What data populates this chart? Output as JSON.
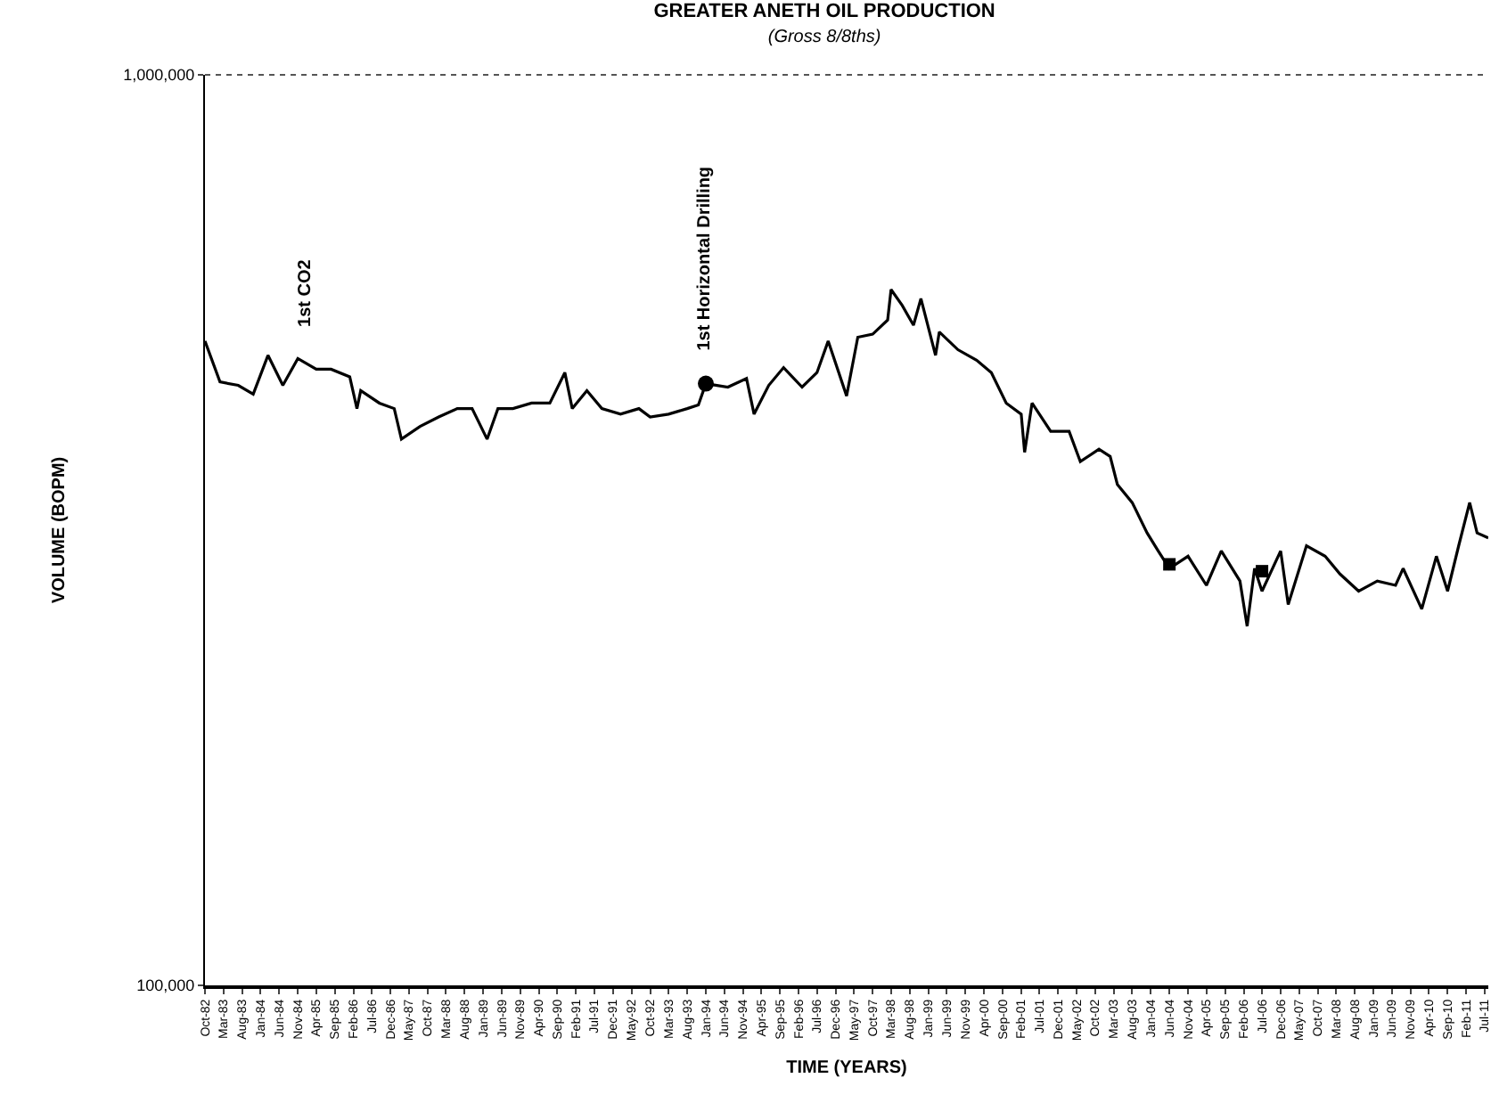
{
  "chart_data": {
    "type": "line",
    "title": "GREATER ANETH OIL PRODUCTION",
    "subtitle": "(Gross 8/8ths)",
    "xlabel": "TIME (YEARS)",
    "ylabel": "VOLUME (BOPM)",
    "log": "y",
    "marker": "none",
    "line_style": "solid",
    "xlim": [
      "1982-10",
      "2011-08"
    ],
    "ylim": [
      100000,
      1000000
    ],
    "yticks": [
      {
        "value": 100000,
        "label": "100,000"
      },
      {
        "value": 1000000,
        "label": "1,000,000"
      }
    ],
    "xticks": [
      {
        "value": "1982-10",
        "label": "Oct-82"
      },
      {
        "value": "1983-03",
        "label": "Mar-83"
      },
      {
        "value": "1983-08",
        "label": "Aug-83"
      },
      {
        "value": "1984-01",
        "label": "Jan-84"
      },
      {
        "value": "1984-06",
        "label": "Jun-84"
      },
      {
        "value": "1984-11",
        "label": "Nov-84"
      },
      {
        "value": "1985-04",
        "label": "Apr-85"
      },
      {
        "value": "1985-09",
        "label": "Sep-85"
      },
      {
        "value": "1986-02",
        "label": "Feb-86"
      },
      {
        "value": "1986-07",
        "label": "Jul-86"
      },
      {
        "value": "1986-12",
        "label": "Dec-86"
      },
      {
        "value": "1987-05",
        "label": "May-87"
      },
      {
        "value": "1987-10",
        "label": "Oct-87"
      },
      {
        "value": "1988-03",
        "label": "Mar-88"
      },
      {
        "value": "1988-08",
        "label": "Aug-88"
      },
      {
        "value": "1989-01",
        "label": "Jan-89"
      },
      {
        "value": "1989-06",
        "label": "Jun-89"
      },
      {
        "value": "1989-11",
        "label": "Nov-89"
      },
      {
        "value": "1990-04",
        "label": "Apr-90"
      },
      {
        "value": "1990-09",
        "label": "Sep-90"
      },
      {
        "value": "1991-02",
        "label": "Feb-91"
      },
      {
        "value": "1991-07",
        "label": "Jul-91"
      },
      {
        "value": "1991-12",
        "label": "Dec-91"
      },
      {
        "value": "1992-05",
        "label": "May-92"
      },
      {
        "value": "1992-10",
        "label": "Oct-92"
      },
      {
        "value": "1993-03",
        "label": "Mar-93"
      },
      {
        "value": "1993-08",
        "label": "Aug-93"
      },
      {
        "value": "1994-01",
        "label": "Jan-94"
      },
      {
        "value": "1994-06",
        "label": "Jun-94"
      },
      {
        "value": "1994-11",
        "label": "Nov-94"
      },
      {
        "value": "1995-04",
        "label": "Apr-95"
      },
      {
        "value": "1995-09",
        "label": "Sep-95"
      },
      {
        "value": "1996-02",
        "label": "Feb-96"
      },
      {
        "value": "1996-07",
        "label": "Jul-96"
      },
      {
        "value": "1996-12",
        "label": "Dec-96"
      },
      {
        "value": "1997-05",
        "label": "May-97"
      },
      {
        "value": "1997-10",
        "label": "Oct-97"
      },
      {
        "value": "1998-03",
        "label": "Mar-98"
      },
      {
        "value": "1998-08",
        "label": "Aug-98"
      },
      {
        "value": "1999-01",
        "label": "Jan-99"
      },
      {
        "value": "1999-06",
        "label": "Jun-99"
      },
      {
        "value": "1999-11",
        "label": "Nov-99"
      },
      {
        "value": "2000-04",
        "label": "Apr-00"
      },
      {
        "value": "2000-09",
        "label": "Sep-00"
      },
      {
        "value": "2001-02",
        "label": "Feb-01"
      },
      {
        "value": "2001-07",
        "label": "Jul-01"
      },
      {
        "value": "2001-12",
        "label": "Dec-01"
      },
      {
        "value": "2002-05",
        "label": "May-02"
      },
      {
        "value": "2002-10",
        "label": "Oct-02"
      },
      {
        "value": "2003-03",
        "label": "Mar-03"
      },
      {
        "value": "2003-08",
        "label": "Aug-03"
      },
      {
        "value": "2004-01",
        "label": "Jan-04"
      },
      {
        "value": "2004-06",
        "label": "Jun-04"
      },
      {
        "value": "2004-11",
        "label": "Nov-04"
      },
      {
        "value": "2005-04",
        "label": "Apr-05"
      },
      {
        "value": "2005-09",
        "label": "Sep-05"
      },
      {
        "value": "2006-02",
        "label": "Feb-06"
      },
      {
        "value": "2006-07",
        "label": "Jul-06"
      },
      {
        "value": "2006-12",
        "label": "Dec-06"
      },
      {
        "value": "2007-05",
        "label": "May-07"
      },
      {
        "value": "2007-10",
        "label": "Oct-07"
      },
      {
        "value": "2008-03",
        "label": "Mar-08"
      },
      {
        "value": "2008-08",
        "label": "Aug-08"
      },
      {
        "value": "2009-01",
        "label": "Jan-09"
      },
      {
        "value": "2009-06",
        "label": "Jun-09"
      },
      {
        "value": "2009-11",
        "label": "Nov-09"
      },
      {
        "value": "2010-04",
        "label": "Apr-10"
      },
      {
        "value": "2010-09",
        "label": "Sep-10"
      },
      {
        "value": "2011-02",
        "label": "Feb-11"
      },
      {
        "value": "2011-07",
        "label": "Jul-11"
      }
    ],
    "series": [
      {
        "color": "#000000",
        "x": [
          "1982-10",
          "1983-02",
          "1983-07",
          "1983-11",
          "1984-03",
          "1984-07",
          "1984-11",
          "1985-04",
          "1985-08",
          "1986-01",
          "1986-03",
          "1986-04",
          "1986-09",
          "1987-01",
          "1987-03",
          "1987-08",
          "1988-01",
          "1988-06",
          "1988-10",
          "1989-02",
          "1989-05",
          "1989-09",
          "1990-02",
          "1990-07",
          "1990-11",
          "1991-01",
          "1991-05",
          "1991-09",
          "1992-02",
          "1992-07",
          "1992-10",
          "1993-03",
          "1993-08",
          "1993-11",
          "1994-01",
          "1994-07",
          "1994-12",
          "1995-02",
          "1995-06",
          "1995-10",
          "1996-03",
          "1996-07",
          "1996-10",
          "1997-03",
          "1997-06",
          "1997-10",
          "1998-02",
          "1998-03",
          "1998-06",
          "1998-09",
          "1998-11",
          "1999-03",
          "1999-04",
          "1999-09",
          "2000-02",
          "2000-06",
          "2000-10",
          "2001-02",
          "2001-03",
          "2001-05",
          "2001-10",
          "2002-03",
          "2002-06",
          "2002-11",
          "2003-02",
          "2003-04",
          "2003-08",
          "2003-12",
          "2004-03",
          "2004-06",
          "2004-11",
          "2005-04",
          "2005-08",
          "2006-01",
          "2006-03",
          "2006-05",
          "2006-07",
          "2006-12",
          "2007-02",
          "2007-07",
          "2007-12",
          "2008-04",
          "2008-09",
          "2009-02",
          "2009-07",
          "2009-09",
          "2010-02",
          "2010-06",
          "2010-09",
          "2010-12",
          "2011-03",
          "2011-05",
          "2011-08"
        ],
        "values": [
          510000,
          460000,
          456000,
          446000,
          492000,
          456000,
          488000,
          475000,
          475000,
          466000,
          430000,
          450000,
          436000,
          430000,
          398000,
          411000,
          421000,
          430000,
          430000,
          398000,
          430000,
          430000,
          436000,
          436000,
          471000,
          430000,
          450000,
          430000,
          424000,
          430000,
          421000,
          424000,
          430000,
          434000,
          458000,
          454000,
          464000,
          424000,
          456000,
          477000,
          454000,
          471000,
          510000,
          444000,
          515000,
          519000,
          538000,
          581000,
          558000,
          531000,
          568000,
          492000,
          522000,
          499000,
          486000,
          471000,
          436000,
          424000,
          385000,
          436000,
          406000,
          406000,
          376000,
          388000,
          381000,
          355000,
          339000,
          314000,
          300000,
          287000,
          296000,
          275000,
          300000,
          278000,
          248000,
          287000,
          271000,
          300000,
          262000,
          304000,
          296000,
          283000,
          271000,
          278000,
          275000,
          287000,
          259000,
          296000,
          271000,
          304000,
          339000,
          314000,
          310000
        ]
      },
      {
        "type": "scatter",
        "marker": "circle",
        "color": "#000000",
        "x": [
          "1994-01"
        ],
        "values": [
          458000
        ]
      },
      {
        "type": "scatter",
        "marker": "square",
        "color": "#000000",
        "x": [
          "2004-06",
          "2006-07"
        ],
        "values": [
          290000,
          285000
        ]
      }
    ],
    "annotations": [
      {
        "text": "1st CO2",
        "x": "1985-01",
        "y": 488000
      },
      {
        "text": "1st Horizontal Drilling",
        "x": "1994-01",
        "y": 458000
      }
    ]
  }
}
